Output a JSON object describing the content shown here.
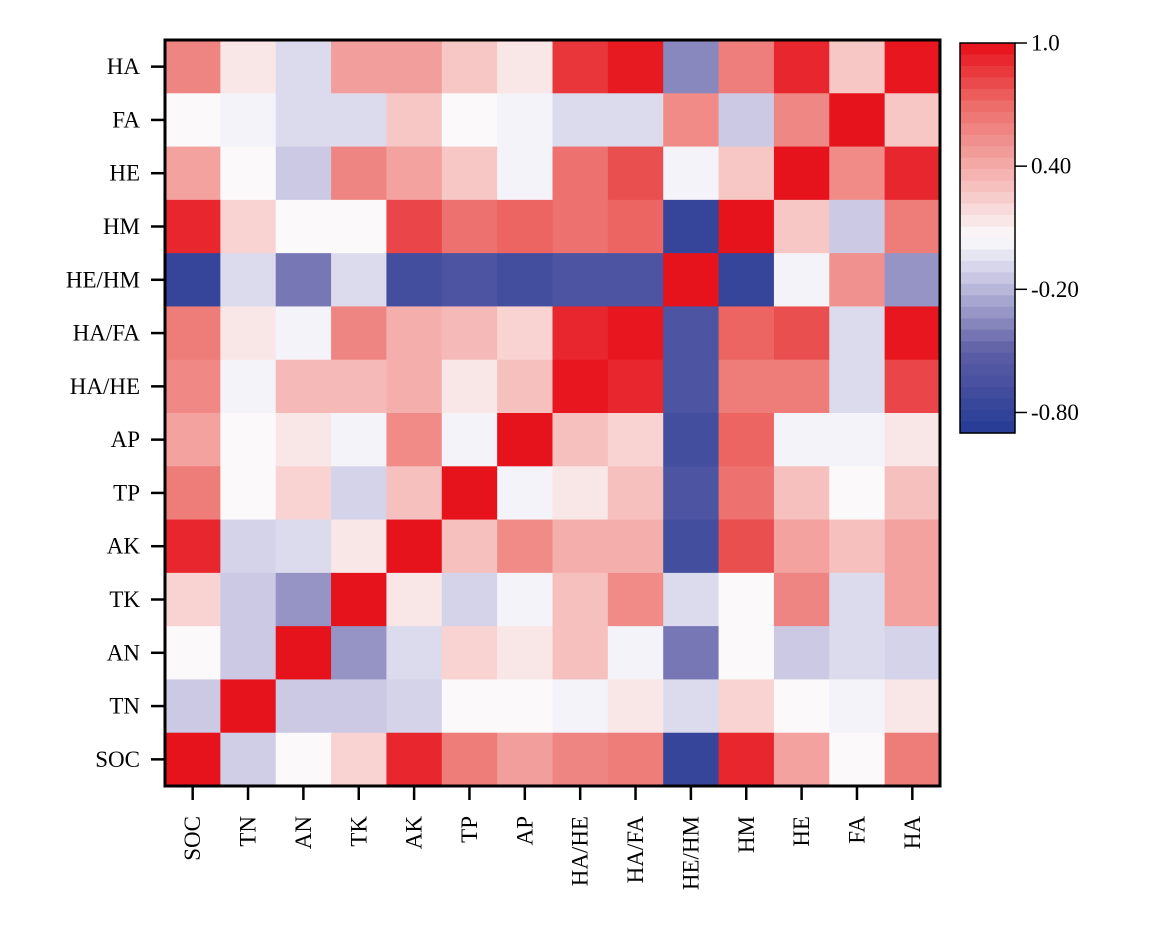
{
  "chart_data": {
    "type": "heatmap",
    "title": "",
    "xlabel": "",
    "ylabel": "",
    "x_categories": [
      "SOC",
      "TN",
      "AN",
      "TK",
      "AK",
      "TP",
      "AP",
      "HA/HE",
      "HA/FA",
      "HE/HM",
      "HM",
      "HE",
      "FA",
      "HA"
    ],
    "y_categories": [
      "HA",
      "FA",
      "HE",
      "HM",
      "HE/HM",
      "HA/FA",
      "HA/HE",
      "AP",
      "TP",
      "AK",
      "TK",
      "AN",
      "TN",
      "SOC"
    ],
    "values": [
      [
        0.58,
        0.14,
        -0.07,
        0.46,
        0.46,
        0.27,
        0.14,
        0.87,
        0.96,
        -0.36,
        0.61,
        0.92,
        0.27,
        0.97
      ],
      [
        0.06,
        0.02,
        -0.07,
        -0.07,
        0.27,
        0.06,
        0.02,
        -0.07,
        -0.07,
        0.55,
        -0.14,
        0.57,
        0.98,
        0.27
      ],
      [
        0.44,
        0.06,
        -0.14,
        0.58,
        0.44,
        0.27,
        0.02,
        0.67,
        0.79,
        0.02,
        0.27,
        0.98,
        0.55,
        0.92
      ],
      [
        0.92,
        0.22,
        0.06,
        0.06,
        0.82,
        0.67,
        0.72,
        0.67,
        0.72,
        -0.78,
        0.98,
        0.27,
        -0.14,
        0.62
      ],
      [
        -0.78,
        -0.07,
        -0.42,
        -0.07,
        -0.68,
        -0.62,
        -0.68,
        -0.62,
        -0.62,
        0.98,
        -0.78,
        0.02,
        0.52,
        -0.32
      ],
      [
        0.62,
        0.14,
        0.02,
        0.58,
        0.38,
        0.33,
        0.22,
        0.92,
        0.97,
        -0.62,
        0.72,
        0.79,
        -0.07,
        0.97
      ],
      [
        0.56,
        0.02,
        0.33,
        0.33,
        0.38,
        0.14,
        0.3,
        0.97,
        0.92,
        -0.62,
        0.62,
        0.62,
        -0.07,
        0.82
      ],
      [
        0.44,
        0.06,
        0.14,
        0.02,
        0.55,
        0.02,
        0.98,
        0.3,
        0.22,
        -0.68,
        0.72,
        0.02,
        0.02,
        0.14
      ],
      [
        0.62,
        0.06,
        0.22,
        -0.1,
        0.3,
        0.98,
        0.02,
        0.14,
        0.3,
        -0.62,
        0.67,
        0.3,
        0.06,
        0.3
      ],
      [
        0.92,
        -0.1,
        -0.07,
        0.14,
        0.98,
        0.3,
        0.55,
        0.38,
        0.38,
        -0.68,
        0.79,
        0.44,
        0.3,
        0.44
      ],
      [
        0.22,
        -0.14,
        -0.32,
        0.98,
        0.14,
        -0.1,
        0.02,
        0.3,
        0.55,
        -0.07,
        0.06,
        0.58,
        -0.07,
        0.44
      ],
      [
        0.06,
        -0.14,
        0.98,
        -0.32,
        -0.07,
        0.22,
        0.14,
        0.3,
        0.02,
        -0.42,
        0.06,
        -0.14,
        -0.07,
        -0.1
      ],
      [
        -0.14,
        0.98,
        -0.14,
        -0.14,
        -0.1,
        0.06,
        0.06,
        0.02,
        0.14,
        -0.07,
        0.22,
        0.06,
        0.02,
        0.14
      ],
      [
        0.98,
        -0.12,
        0.06,
        0.22,
        0.92,
        0.62,
        0.46,
        0.58,
        0.62,
        -0.78,
        0.92,
        0.44,
        0.06,
        0.62
      ]
    ],
    "colorbar": {
      "range": [
        -0.9,
        1.0
      ],
      "tick_labels": [
        "1.0",
        "0.40",
        "-0.20",
        "-0.80"
      ],
      "tick_values": [
        1.0,
        0.4,
        -0.2,
        -0.8
      ],
      "colors": {
        "low": "#253a95",
        "mid_low": "#5e5fa6",
        "pale_blue": "#c8c6e3",
        "neutral": "#fbfbfd",
        "pale_red": "#f6c0be",
        "mid_high": "#ec6b68",
        "high": "#e60d17"
      }
    },
    "grid": false,
    "legend": "colorbar right"
  }
}
